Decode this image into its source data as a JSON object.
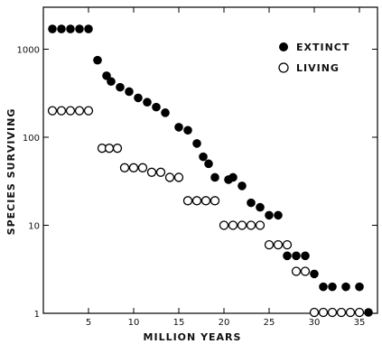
{
  "chart_data": {
    "type": "scatter",
    "xlabel": "MILLION YEARS",
    "ylabel": "SPECIES SURVIVING",
    "xlim": [
      0,
      37
    ],
    "ylim": [
      1,
      3000
    ],
    "y_scale": "log",
    "x_ticks": [
      5,
      10,
      15,
      20,
      25,
      30,
      35
    ],
    "x_tick_labels": [
      "5",
      "10",
      "15",
      "20",
      "25",
      "30",
      "35"
    ],
    "y_ticks": [
      1,
      10,
      100,
      1000
    ],
    "y_tick_labels": [
      "1",
      "10",
      "100",
      "1000"
    ],
    "legend_position": "top-right",
    "series": [
      {
        "name": "EXTINCT",
        "marker": "filled-circle",
        "color": "#000000",
        "x": [
          1,
          2,
          3,
          4,
          5,
          6,
          7,
          7.5,
          8.5,
          9.5,
          10.5,
          11.5,
          12.5,
          13.5,
          15,
          16,
          17,
          17.7,
          18.3,
          19,
          20.5,
          21,
          22,
          23,
          24,
          25,
          26,
          27,
          28,
          29,
          30,
          31,
          32,
          33.5,
          35,
          36
        ],
        "y": [
          1700,
          1700,
          1700,
          1700,
          1700,
          750,
          500,
          430,
          370,
          330,
          280,
          250,
          220,
          190,
          130,
          120,
          85,
          60,
          50,
          35,
          33,
          35,
          28,
          18,
          16,
          13,
          13,
          4.5,
          4.5,
          4.5,
          2.8,
          2,
          2,
          2,
          2,
          1
        ]
      },
      {
        "name": "LIVING",
        "marker": "open-circle",
        "color": "#000000",
        "x": [
          1,
          2,
          3,
          4,
          5,
          6.5,
          7.3,
          8.2,
          9,
          10,
          11,
          12,
          13,
          14,
          15,
          16,
          17,
          18,
          19,
          20,
          21,
          22,
          23,
          24,
          25,
          26,
          27,
          28,
          29,
          30,
          31,
          32,
          33,
          34,
          35
        ],
        "y": [
          200,
          200,
          200,
          200,
          200,
          75,
          75,
          75,
          45,
          45,
          45,
          40,
          40,
          35,
          35,
          19,
          19,
          19,
          19,
          10,
          10,
          10,
          10,
          10,
          6,
          6,
          6,
          3,
          3,
          1,
          1,
          1,
          1,
          1,
          1
        ]
      }
    ]
  }
}
